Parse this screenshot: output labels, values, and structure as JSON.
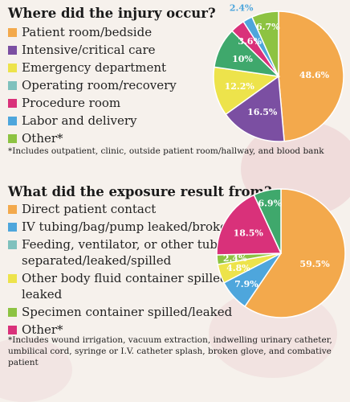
{
  "colors": {
    "orange": "#f3a94c",
    "purple": "#7b4fa2",
    "yellow": "#ede34b",
    "teal": "#7fc1bd",
    "magenta": "#d9317a",
    "blue": "#4ea6dc",
    "green": "#8dc342",
    "forest": "#3fa86c"
  },
  "chart_data": [
    {
      "type": "pie",
      "title": "Where did the injury occur?",
      "footnote": "*Includes outpatient, clinic, outside patient room/hallway, and blood bank",
      "legend": [
        {
          "label": "Patient room/bedside",
          "color": "#f3a94c"
        },
        {
          "label": "Intensive/critical care",
          "color": "#7b4fa2"
        },
        {
          "label": "Emergency department",
          "color": "#ede34b"
        },
        {
          "label": "Operating room/recovery",
          "color": "#7fc1bd"
        },
        {
          "label": "Procedure room",
          "color": "#d9317a"
        },
        {
          "label": "Labor and delivery",
          "color": "#4ea6dc"
        },
        {
          "label": "Other*",
          "color": "#8dc342"
        }
      ],
      "slices": [
        {
          "label": "48.6%",
          "value": 48.6,
          "color": "#f3a94c"
        },
        {
          "label": "16.5%",
          "value": 16.5,
          "color": "#7b4fa2"
        },
        {
          "label": "12.2%",
          "value": 12.2,
          "color": "#ede34b"
        },
        {
          "label": "10%",
          "value": 10.0,
          "color": "#3fa86c"
        },
        {
          "label": "3.6%",
          "value": 3.6,
          "color": "#d9317a"
        },
        {
          "label": "2.4%",
          "value": 2.4,
          "color": "#4ea6dc"
        },
        {
          "label": "6.7%",
          "value": 6.7,
          "color": "#8dc342"
        }
      ]
    },
    {
      "type": "pie",
      "title": "What did the exposure result from?",
      "footnote": "*Includes wound irrigation, vacuum extraction, indwelling urinary catheter, umbilical cord, syringe or I.V. catheter splash, broken glove, and combative patient",
      "legend": [
        {
          "label": "Direct patient contact",
          "color": "#f3a94c"
        },
        {
          "label": "IV tubing/bag/pump leaked/broke",
          "color": "#4ea6dc"
        },
        {
          "label": "Feeding, ventilator, or other tube separated/leaked/spilled",
          "color": "#7fc1bd"
        },
        {
          "label": "Other body fluid container spilled/ leaked",
          "color": "#ede34b"
        },
        {
          "label": "Specimen container spilled/leaked",
          "color": "#8dc342"
        },
        {
          "label": "Other*",
          "color": "#d9317a"
        }
      ],
      "slices": [
        {
          "label": "59.5%",
          "value": 59.5,
          "color": "#f3a94c"
        },
        {
          "label": "7.9%",
          "value": 7.9,
          "color": "#4ea6dc"
        },
        {
          "label": "4.8%",
          "value": 4.8,
          "color": "#ede34b"
        },
        {
          "label": "2.4%",
          "value": 2.4,
          "color": "#8dc342"
        },
        {
          "label": "18.5%",
          "value": 18.5,
          "color": "#d9317a"
        },
        {
          "label": "6.9%",
          "value": 6.9,
          "color": "#3fa86c"
        }
      ]
    }
  ]
}
